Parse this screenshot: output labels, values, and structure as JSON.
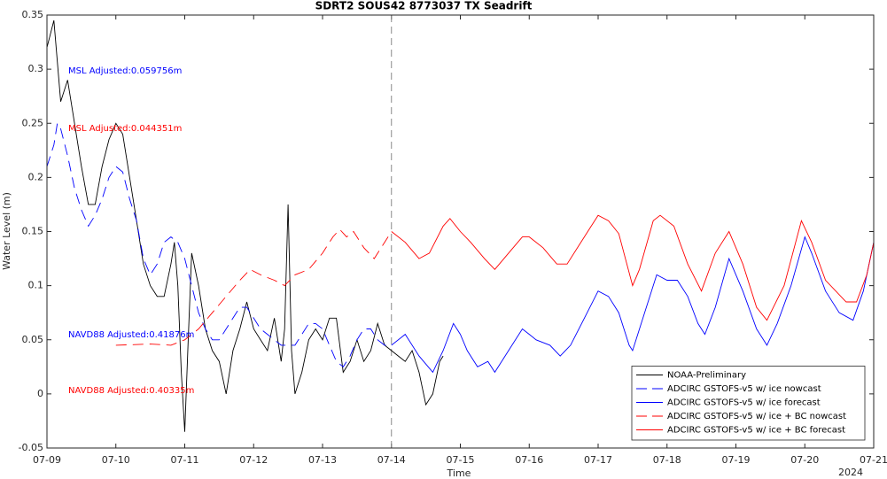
{
  "chart_data": {
    "type": "line",
    "title": "SDRT2 SOUS42 8773037 TX Seadrift",
    "xlabel": "Time",
    "ylabel": "Water Level (m)",
    "x_year_label": "2024",
    "xlim": [
      0,
      12
    ],
    "xticks": [
      {
        "value": 0,
        "label": "07-09"
      },
      {
        "value": 1,
        "label": "07-10"
      },
      {
        "value": 2,
        "label": "07-11"
      },
      {
        "value": 3,
        "label": "07-12"
      },
      {
        "value": 4,
        "label": "07-13"
      },
      {
        "value": 5,
        "label": "07-14"
      },
      {
        "value": 6,
        "label": "07-15"
      },
      {
        "value": 7,
        "label": "07-16"
      },
      {
        "value": 8,
        "label": "07-17"
      },
      {
        "value": 9,
        "label": "07-18"
      },
      {
        "value": 10,
        "label": "07-19"
      },
      {
        "value": 11,
        "label": "07-20"
      },
      {
        "value": 12,
        "label": "07-21"
      }
    ],
    "ylim": [
      -0.05,
      0.35
    ],
    "yticks": [
      -0.05,
      0,
      0.05,
      0.1,
      0.15,
      0.2,
      0.25,
      0.3,
      0.35
    ],
    "vline": 5,
    "legend": "lower right",
    "grid": false,
    "annotations": [
      {
        "text": "MSL Adjusted:0.059756m",
        "color": "#0000ff"
      },
      {
        "text": "MSL Adjusted:0.044351m",
        "color": "#ff0000"
      },
      {
        "text": "NAVD88 Adjusted:0.41876m",
        "color": "#0000ff"
      },
      {
        "text": "NAVD88 Adjusted:0.40335m",
        "color": "#ff0000"
      }
    ],
    "series": [
      {
        "name": "NOAA-Preliminary",
        "color": "#000000",
        "linestyle": "solid",
        "x": [
          0,
          0.1,
          0.2,
          0.3,
          0.4,
          0.5,
          0.6,
          0.7,
          0.8,
          0.9,
          1.0,
          1.1,
          1.2,
          1.3,
          1.4,
          1.5,
          1.6,
          1.7,
          1.8,
          1.85,
          1.9,
          1.95,
          2.0,
          2.05,
          2.1,
          2.2,
          2.3,
          2.4,
          2.5,
          2.6,
          2.7,
          2.8,
          2.9,
          3.0,
          3.1,
          3.2,
          3.3,
          3.4,
          3.45,
          3.5,
          3.55,
          3.6,
          3.7,
          3.8,
          3.9,
          4.0,
          4.1,
          4.2,
          4.3,
          4.4,
          4.5,
          4.6,
          4.7,
          4.8,
          4.9,
          5.0,
          5.1,
          5.2,
          5.3,
          5.4,
          5.5,
          5.6,
          5.7,
          5.75
        ],
        "values": [
          0.32,
          0.345,
          0.27,
          0.29,
          0.25,
          0.21,
          0.175,
          0.175,
          0.21,
          0.235,
          0.25,
          0.24,
          0.2,
          0.16,
          0.12,
          0.1,
          0.09,
          0.09,
          0.12,
          0.14,
          0.1,
          0.02,
          -0.035,
          0.05,
          0.13,
          0.1,
          0.06,
          0.04,
          0.03,
          0.0,
          0.04,
          0.06,
          0.085,
          0.06,
          0.05,
          0.04,
          0.07,
          0.03,
          0.06,
          0.175,
          0.04,
          0.0,
          0.02,
          0.05,
          0.06,
          0.05,
          0.07,
          0.07,
          0.02,
          0.03,
          0.05,
          0.03,
          0.04,
          0.065,
          0.045,
          0.04,
          0.035,
          0.03,
          0.04,
          0.02,
          -0.01,
          0.0,
          0.03,
          0.035
        ]
      },
      {
        "name": "ADCIRC GSTOFS-v5 w/ ice nowcast",
        "color": "#0000ff",
        "linestyle": "dashed",
        "x": [
          0,
          0.1,
          0.15,
          0.2,
          0.3,
          0.4,
          0.5,
          0.6,
          0.7,
          0.8,
          0.9,
          1.0,
          1.1,
          1.2,
          1.3,
          1.4,
          1.5,
          1.6,
          1.7,
          1.8,
          1.9,
          2.0,
          2.1,
          2.2,
          2.3,
          2.4,
          2.5,
          2.6,
          2.7,
          2.8,
          2.9,
          3.0,
          3.1,
          3.2,
          3.3,
          3.4,
          3.5,
          3.6,
          3.7,
          3.8,
          3.9,
          4.0,
          4.1,
          4.2,
          4.3,
          4.4,
          4.5,
          4.6,
          4.7,
          4.8,
          4.9,
          5.0
        ],
        "values": [
          0.21,
          0.23,
          0.25,
          0.245,
          0.22,
          0.19,
          0.17,
          0.155,
          0.165,
          0.18,
          0.2,
          0.21,
          0.205,
          0.18,
          0.16,
          0.125,
          0.11,
          0.12,
          0.14,
          0.145,
          0.14,
          0.125,
          0.1,
          0.075,
          0.06,
          0.05,
          0.05,
          0.06,
          0.07,
          0.08,
          0.08,
          0.07,
          0.06,
          0.055,
          0.05,
          0.045,
          0.045,
          0.045,
          0.055,
          0.065,
          0.065,
          0.06,
          0.045,
          0.03,
          0.025,
          0.035,
          0.05,
          0.06,
          0.06,
          0.05,
          0.045,
          0.045
        ]
      },
      {
        "name": "ADCIRC GSTOFS-v5 w/ ice forecast",
        "color": "#0000ff",
        "linestyle": "solid",
        "x": [
          5.0,
          5.2,
          5.4,
          5.6,
          5.75,
          5.9,
          6.0,
          6.1,
          6.25,
          6.4,
          6.5,
          6.7,
          6.9,
          7.0,
          7.1,
          7.3,
          7.45,
          7.6,
          7.8,
          8.0,
          8.15,
          8.3,
          8.45,
          8.5,
          8.7,
          8.85,
          9.0,
          9.15,
          9.3,
          9.45,
          9.55,
          9.7,
          9.9,
          10.1,
          10.3,
          10.45,
          10.6,
          10.8,
          11.0,
          11.1,
          11.3,
          11.5,
          11.7,
          11.85,
          12.0
        ],
        "values": [
          0.045,
          0.055,
          0.035,
          0.02,
          0.04,
          0.065,
          0.055,
          0.04,
          0.025,
          0.03,
          0.02,
          0.04,
          0.06,
          0.055,
          0.05,
          0.045,
          0.035,
          0.045,
          0.07,
          0.095,
          0.09,
          0.075,
          0.045,
          0.04,
          0.08,
          0.11,
          0.105,
          0.105,
          0.09,
          0.065,
          0.055,
          0.08,
          0.125,
          0.095,
          0.06,
          0.045,
          0.065,
          0.1,
          0.145,
          0.13,
          0.095,
          0.075,
          0.068,
          0.095,
          0.14
        ]
      },
      {
        "name": "ADCIRC GSTOFS-v5 w/ ice + BC nowcast",
        "color": "#ff0000",
        "linestyle": "dashed",
        "x": [
          1.0,
          1.5,
          1.8,
          2.0,
          2.2,
          2.4,
          2.6,
          2.8,
          2.95,
          3.1,
          3.3,
          3.45,
          3.6,
          3.8,
          4.0,
          4.15,
          4.25,
          4.35,
          4.45,
          4.6,
          4.75,
          4.9,
          5.0
        ],
        "values": [
          0.045,
          0.046,
          0.045,
          0.05,
          0.06,
          0.075,
          0.09,
          0.105,
          0.115,
          0.11,
          0.105,
          0.1,
          0.11,
          0.115,
          0.13,
          0.145,
          0.152,
          0.145,
          0.15,
          0.135,
          0.125,
          0.14,
          0.15
        ]
      },
      {
        "name": "ADCIRC GSTOFS-v5 w/ ice + BC forecast",
        "color": "#ff0000",
        "linestyle": "solid",
        "x": [
          5.0,
          5.2,
          5.4,
          5.55,
          5.75,
          5.85,
          6.0,
          6.15,
          6.35,
          6.5,
          6.7,
          6.9,
          7.0,
          7.2,
          7.4,
          7.55,
          7.7,
          7.9,
          8.0,
          8.15,
          8.3,
          8.5,
          8.6,
          8.8,
          8.9,
          9.1,
          9.3,
          9.5,
          9.7,
          9.9,
          10.1,
          10.3,
          10.45,
          10.7,
          10.95,
          11.1,
          11.3,
          11.6,
          11.75,
          11.9,
          12.0
        ],
        "values": [
          0.15,
          0.14,
          0.125,
          0.13,
          0.155,
          0.162,
          0.15,
          0.14,
          0.125,
          0.115,
          0.13,
          0.145,
          0.145,
          0.135,
          0.12,
          0.12,
          0.135,
          0.155,
          0.165,
          0.16,
          0.148,
          0.1,
          0.115,
          0.16,
          0.165,
          0.155,
          0.12,
          0.095,
          0.13,
          0.15,
          0.12,
          0.08,
          0.068,
          0.1,
          0.16,
          0.14,
          0.105,
          0.085,
          0.085,
          0.11,
          0.14
        ]
      }
    ]
  }
}
